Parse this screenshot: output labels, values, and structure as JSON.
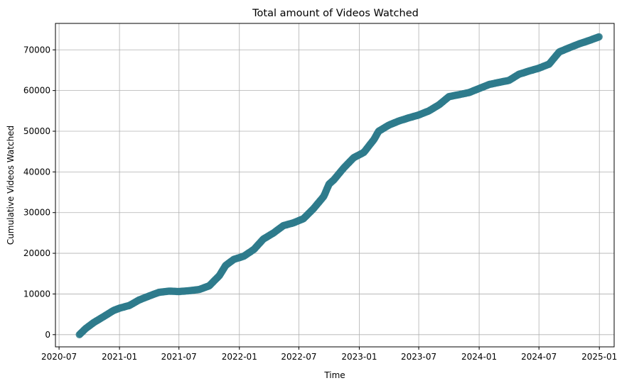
{
  "chart_data": {
    "type": "line",
    "title": "Total amount of Videos Watched",
    "xlabel": "Time",
    "ylabel": "Cumulative Videos Watched",
    "x_ticks": [
      "2020-07",
      "2021-01",
      "2021-07",
      "2022-01",
      "2022-07",
      "2023-01",
      "2023-07",
      "2024-01",
      "2024-07",
      "2025-01"
    ],
    "y_ticks": [
      0,
      10000,
      20000,
      30000,
      40000,
      50000,
      60000,
      70000
    ],
    "xlim": [
      "2020-06-20",
      "2025-02-15"
    ],
    "ylim": [
      -3000,
      76500
    ],
    "grid": true,
    "marker": "circle",
    "color": "#2e7b8c",
    "series": [
      {
        "x": [
          "2020-09-01",
          "2020-09-20",
          "2020-10-15",
          "2020-11-15",
          "2020-12-15",
          "2021-01-01",
          "2021-02-01",
          "2021-03-01",
          "2021-04-01",
          "2021-05-01",
          "2021-06-01",
          "2021-07-01",
          "2021-08-01",
          "2021-09-01",
          "2021-10-01",
          "2021-11-01",
          "2021-11-20",
          "2021-12-15",
          "2022-01-15",
          "2022-02-15",
          "2022-03-15",
          "2022-04-15",
          "2022-05-15",
          "2022-06-15",
          "2022-07-15",
          "2022-08-15",
          "2022-09-15",
          "2022-10-01",
          "2022-10-15",
          "2022-11-15",
          "2022-12-15",
          "2023-01-15",
          "2023-02-15",
          "2023-03-01",
          "2023-04-01",
          "2023-05-01",
          "2023-06-01",
          "2023-07-01",
          "2023-08-01",
          "2023-09-01",
          "2023-10-01",
          "2023-11-01",
          "2023-12-01",
          "2024-01-01",
          "2024-02-01",
          "2024-03-01",
          "2024-04-01",
          "2024-05-01",
          "2024-06-01",
          "2024-07-01",
          "2024-08-01",
          "2024-09-01",
          "2024-10-01",
          "2024-11-01",
          "2024-12-01",
          "2024-12-31"
        ],
        "y": [
          0,
          1500,
          3000,
          4500,
          6000,
          6500,
          7200,
          8500,
          9500,
          10400,
          10700,
          10600,
          10800,
          11100,
          12000,
          14500,
          17000,
          18500,
          19300,
          21000,
          23500,
          25000,
          26800,
          27500,
          28500,
          31000,
          34000,
          37000,
          38000,
          41000,
          43500,
          44800,
          48000,
          50000,
          51500,
          52500,
          53300,
          54000,
          55000,
          56500,
          58500,
          59000,
          59500,
          60500,
          61500,
          62000,
          62500,
          64000,
          64800,
          65500,
          66500,
          69500,
          70500,
          71500,
          72300,
          73200
        ]
      }
    ]
  }
}
